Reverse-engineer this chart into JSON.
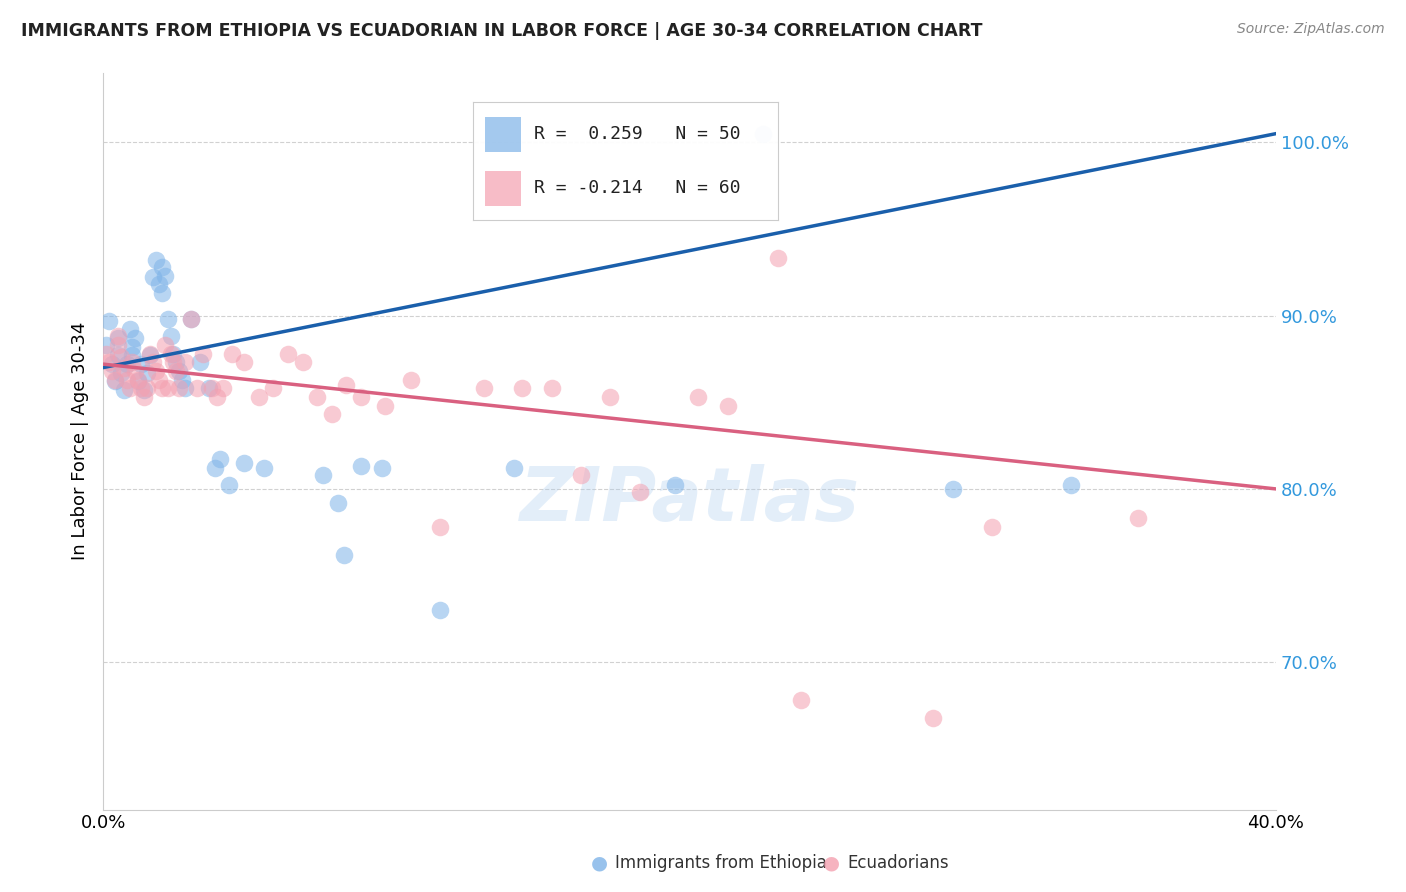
{
  "title": "IMMIGRANTS FROM ETHIOPIA VS ECUADORIAN IN LABOR FORCE | AGE 30-34 CORRELATION CHART",
  "source": "Source: ZipAtlas.com",
  "ylabel": "In Labor Force | Age 30-34",
  "xlim": [
    0.0,
    0.4
  ],
  "ylim": [
    0.615,
    1.04
  ],
  "yticks": [
    0.7,
    0.8,
    0.9,
    1.0
  ],
  "ytick_labels": [
    "70.0%",
    "80.0%",
    "90.0%",
    "100.0%"
  ],
  "xticks": [
    0.0,
    0.05,
    0.1,
    0.15,
    0.2,
    0.25,
    0.3,
    0.35,
    0.4
  ],
  "xtick_labels": [
    "0.0%",
    "",
    "",
    "",
    "",
    "",
    "",
    "",
    "40.0%"
  ],
  "legend_blue_r": "0.259",
  "legend_blue_n": "50",
  "legend_pink_r": "-0.214",
  "legend_pink_n": "60",
  "blue_color": "#7EB3E8",
  "pink_color": "#F4A0B0",
  "line_blue_color": "#1A5FAB",
  "line_pink_color": "#D96080",
  "watermark": "ZIPatlas",
  "blue_scatter": [
    [
      0.001,
      0.883
    ],
    [
      0.002,
      0.897
    ],
    [
      0.003,
      0.872
    ],
    [
      0.004,
      0.862
    ],
    [
      0.005,
      0.877
    ],
    [
      0.005,
      0.887
    ],
    [
      0.006,
      0.867
    ],
    [
      0.007,
      0.857
    ],
    [
      0.008,
      0.872
    ],
    [
      0.009,
      0.892
    ],
    [
      0.01,
      0.882
    ],
    [
      0.01,
      0.877
    ],
    [
      0.011,
      0.887
    ],
    [
      0.012,
      0.862
    ],
    [
      0.013,
      0.872
    ],
    [
      0.014,
      0.857
    ],
    [
      0.015,
      0.867
    ],
    [
      0.016,
      0.877
    ],
    [
      0.017,
      0.922
    ],
    [
      0.018,
      0.932
    ],
    [
      0.019,
      0.918
    ],
    [
      0.02,
      0.928
    ],
    [
      0.02,
      0.913
    ],
    [
      0.021,
      0.923
    ],
    [
      0.022,
      0.898
    ],
    [
      0.023,
      0.888
    ],
    [
      0.024,
      0.878
    ],
    [
      0.025,
      0.873
    ],
    [
      0.026,
      0.868
    ],
    [
      0.027,
      0.863
    ],
    [
      0.028,
      0.858
    ],
    [
      0.03,
      0.898
    ],
    [
      0.033,
      0.873
    ],
    [
      0.036,
      0.858
    ],
    [
      0.038,
      0.812
    ],
    [
      0.04,
      0.817
    ],
    [
      0.043,
      0.802
    ],
    [
      0.048,
      0.815
    ],
    [
      0.055,
      0.812
    ],
    [
      0.075,
      0.808
    ],
    [
      0.08,
      0.792
    ],
    [
      0.082,
      0.762
    ],
    [
      0.088,
      0.813
    ],
    [
      0.095,
      0.812
    ],
    [
      0.14,
      0.812
    ],
    [
      0.195,
      0.802
    ],
    [
      0.225,
      1.005
    ],
    [
      0.115,
      0.73
    ],
    [
      0.33,
      0.802
    ],
    [
      0.29,
      0.8
    ]
  ],
  "pink_scatter": [
    [
      0.001,
      0.878
    ],
    [
      0.002,
      0.873
    ],
    [
      0.003,
      0.868
    ],
    [
      0.004,
      0.863
    ],
    [
      0.005,
      0.888
    ],
    [
      0.005,
      0.883
    ],
    [
      0.006,
      0.876
    ],
    [
      0.007,
      0.87
    ],
    [
      0.008,
      0.863
    ],
    [
      0.009,
      0.858
    ],
    [
      0.01,
      0.873
    ],
    [
      0.011,
      0.868
    ],
    [
      0.012,
      0.863
    ],
    [
      0.013,
      0.858
    ],
    [
      0.014,
      0.853
    ],
    [
      0.015,
      0.858
    ],
    [
      0.016,
      0.878
    ],
    [
      0.017,
      0.873
    ],
    [
      0.018,
      0.868
    ],
    [
      0.019,
      0.863
    ],
    [
      0.02,
      0.858
    ],
    [
      0.021,
      0.883
    ],
    [
      0.022,
      0.858
    ],
    [
      0.023,
      0.878
    ],
    [
      0.024,
      0.873
    ],
    [
      0.025,
      0.868
    ],
    [
      0.026,
      0.858
    ],
    [
      0.028,
      0.873
    ],
    [
      0.03,
      0.898
    ],
    [
      0.032,
      0.858
    ],
    [
      0.034,
      0.878
    ],
    [
      0.037,
      0.858
    ],
    [
      0.039,
      0.853
    ],
    [
      0.041,
      0.858
    ],
    [
      0.044,
      0.878
    ],
    [
      0.048,
      0.873
    ],
    [
      0.053,
      0.853
    ],
    [
      0.058,
      0.858
    ],
    [
      0.063,
      0.878
    ],
    [
      0.068,
      0.873
    ],
    [
      0.073,
      0.853
    ],
    [
      0.078,
      0.843
    ],
    [
      0.083,
      0.86
    ],
    [
      0.088,
      0.853
    ],
    [
      0.096,
      0.848
    ],
    [
      0.105,
      0.863
    ],
    [
      0.115,
      0.778
    ],
    [
      0.13,
      0.858
    ],
    [
      0.143,
      0.858
    ],
    [
      0.153,
      0.858
    ],
    [
      0.163,
      0.808
    ],
    [
      0.173,
      0.853
    ],
    [
      0.183,
      0.798
    ],
    [
      0.203,
      0.853
    ],
    [
      0.213,
      0.848
    ],
    [
      0.23,
      0.933
    ],
    [
      0.238,
      0.678
    ],
    [
      0.283,
      0.668
    ],
    [
      0.303,
      0.778
    ],
    [
      0.353,
      0.783
    ]
  ]
}
